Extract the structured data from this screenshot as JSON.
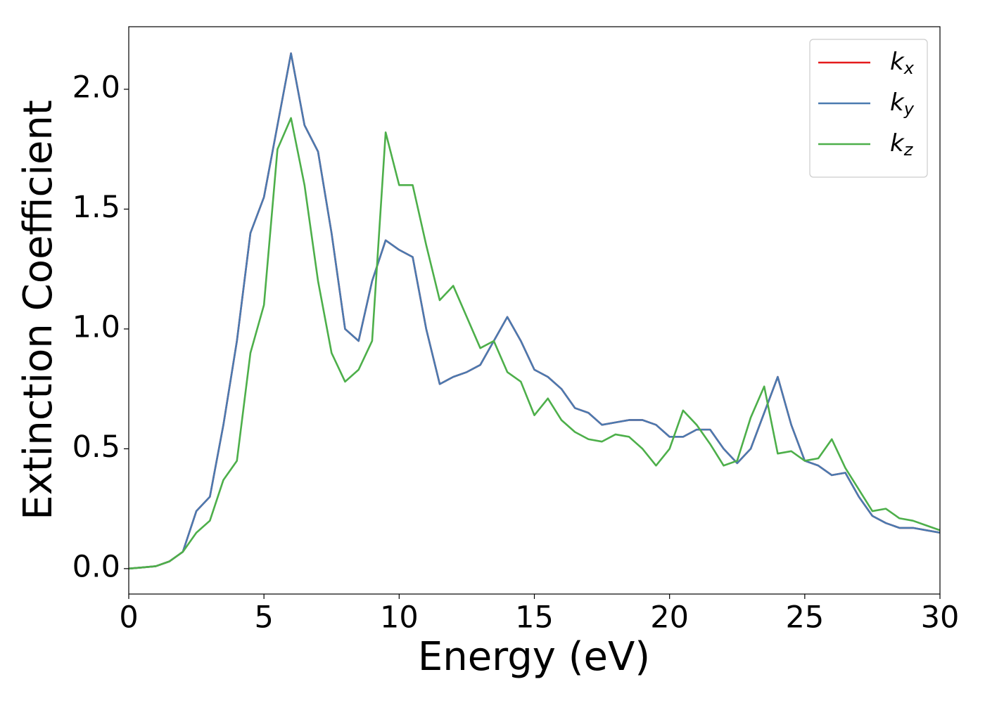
{
  "chart_data": {
    "type": "line",
    "xlabel": "Energy (eV)",
    "ylabel": "Extinction Coefficient",
    "x": [
      0,
      0.5,
      1,
      1.5,
      2,
      2.5,
      3,
      3.5,
      4,
      4.5,
      5,
      5.5,
      6,
      6.5,
      7,
      7.5,
      8,
      8.5,
      9,
      9.5,
      10,
      10.5,
      11,
      11.5,
      12,
      12.5,
      13,
      13.5,
      14,
      14.5,
      15,
      15.5,
      16,
      16.5,
      17,
      17.5,
      18,
      18.5,
      19,
      19.5,
      20,
      20.5,
      21,
      21.5,
      22,
      22.5,
      23,
      23.5,
      24,
      24.5,
      25,
      25.5,
      26,
      26.5,
      27,
      27.5,
      28,
      28.5,
      29,
      29.5,
      30
    ],
    "series": [
      {
        "name": "kx",
        "color": "#e41a1c",
        "values": [
          0,
          0.005,
          0.01,
          0.03,
          0.07,
          0.24,
          0.3,
          0.6,
          0.95,
          1.4,
          1.55,
          1.85,
          2.15,
          1.85,
          1.74,
          1.4,
          1.0,
          0.95,
          1.2,
          1.37,
          1.33,
          1.3,
          1.0,
          0.77,
          0.8,
          0.82,
          0.85,
          0.95,
          1.05,
          0.95,
          0.83,
          0.8,
          0.75,
          0.67,
          0.65,
          0.6,
          0.61,
          0.62,
          0.62,
          0.6,
          0.55,
          0.55,
          0.58,
          0.58,
          0.5,
          0.44,
          0.5,
          0.65,
          0.8,
          0.6,
          0.45,
          0.43,
          0.39,
          0.4,
          0.3,
          0.22,
          0.19,
          0.17,
          0.17,
          0.16,
          0.15
        ]
      },
      {
        "name": "ky",
        "color": "#4a7ab0",
        "values": [
          0,
          0.005,
          0.01,
          0.03,
          0.07,
          0.24,
          0.3,
          0.6,
          0.95,
          1.4,
          1.55,
          1.85,
          2.15,
          1.85,
          1.74,
          1.4,
          1.0,
          0.95,
          1.2,
          1.37,
          1.33,
          1.3,
          1.0,
          0.77,
          0.8,
          0.82,
          0.85,
          0.95,
          1.05,
          0.95,
          0.83,
          0.8,
          0.75,
          0.67,
          0.65,
          0.6,
          0.61,
          0.62,
          0.62,
          0.6,
          0.55,
          0.55,
          0.58,
          0.58,
          0.5,
          0.44,
          0.5,
          0.65,
          0.8,
          0.6,
          0.45,
          0.43,
          0.39,
          0.4,
          0.3,
          0.22,
          0.19,
          0.17,
          0.17,
          0.16,
          0.15
        ]
      },
      {
        "name": "kz",
        "color": "#4daf4a",
        "values": [
          0,
          0.005,
          0.01,
          0.03,
          0.07,
          0.15,
          0.2,
          0.37,
          0.45,
          0.9,
          1.1,
          1.75,
          1.88,
          1.6,
          1.2,
          0.9,
          0.78,
          0.83,
          0.95,
          1.82,
          1.6,
          1.6,
          1.35,
          1.12,
          1.18,
          1.05,
          0.92,
          0.95,
          0.82,
          0.78,
          0.64,
          0.71,
          0.62,
          0.57,
          0.54,
          0.53,
          0.56,
          0.55,
          0.5,
          0.43,
          0.5,
          0.66,
          0.6,
          0.52,
          0.43,
          0.45,
          0.63,
          0.76,
          0.48,
          0.49,
          0.45,
          0.46,
          0.54,
          0.42,
          0.33,
          0.24,
          0.25,
          0.21,
          0.2,
          0.18,
          0.16
        ]
      }
    ],
    "xlim": [
      0,
      30
    ],
    "xticks": [
      0,
      5,
      10,
      15,
      20,
      25,
      30
    ],
    "ylim": [
      -0.106,
      2.261
    ],
    "yticks": [
      {
        "value": 0,
        "label": "0.0"
      },
      0.5,
      {
        "value": 1,
        "label": "1.0"
      },
      1.5,
      {
        "value": 2,
        "label": "2.0"
      }
    ],
    "legend": "upper right",
    "grid": false
  }
}
